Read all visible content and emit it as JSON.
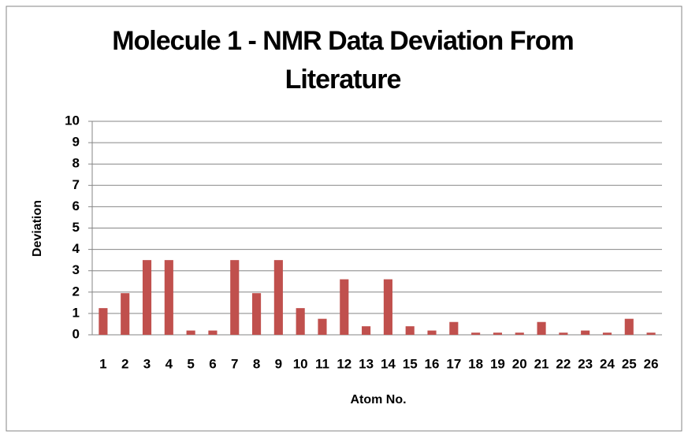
{
  "chart_data": {
    "type": "bar",
    "title": "Molecule 1 - NMR Data Deviation From Literature",
    "x_label": "Atom No.",
    "y_label": "Deviation",
    "categories": [
      "1",
      "2",
      "3",
      "4",
      "5",
      "6",
      "7",
      "8",
      "9",
      "10",
      "11",
      "12",
      "13",
      "14",
      "15",
      "16",
      "17",
      "18",
      "19",
      "20",
      "21",
      "22",
      "23",
      "24",
      "25",
      "26"
    ],
    "values": [
      1.25,
      1.95,
      3.5,
      3.5,
      0.2,
      0.2,
      3.5,
      1.95,
      3.5,
      1.25,
      0.75,
      2.6,
      0.4,
      2.6,
      0.4,
      0.2,
      0.6,
      0.1,
      0.1,
      0.1,
      0.6,
      0.1,
      0.2,
      0.1,
      0.75,
      0.1
    ],
    "color": "#c0504d",
    "ylim": [
      0,
      10
    ],
    "yticks": [
      0,
      1,
      2,
      3,
      4,
      5,
      6,
      7,
      8,
      9,
      10
    ],
    "grid": true
  }
}
